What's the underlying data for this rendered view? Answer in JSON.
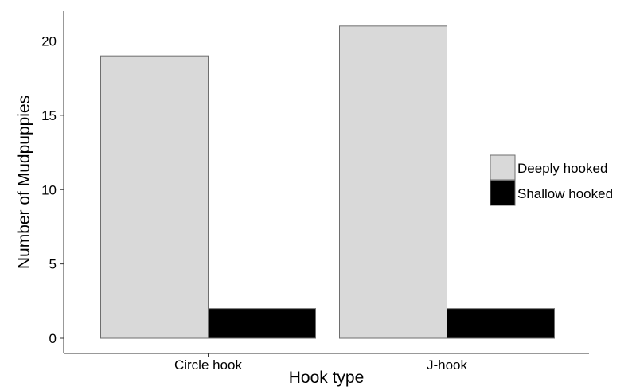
{
  "chart_data": {
    "type": "bar",
    "xlabel": "Hook type",
    "ylabel": "Number of Mudpuppies",
    "categories": [
      "Circle hook",
      "J-hook"
    ],
    "series": [
      {
        "name": "Deeply hooked",
        "values": [
          19,
          21
        ],
        "color": "#d9d9d9"
      },
      {
        "name": "Shallow hooked",
        "values": [
          2,
          2
        ],
        "color": "#000000"
      }
    ],
    "ylim": [
      0,
      22
    ],
    "yticks": [
      0,
      5,
      10,
      15,
      20
    ],
    "grid": false,
    "legend": "right"
  }
}
